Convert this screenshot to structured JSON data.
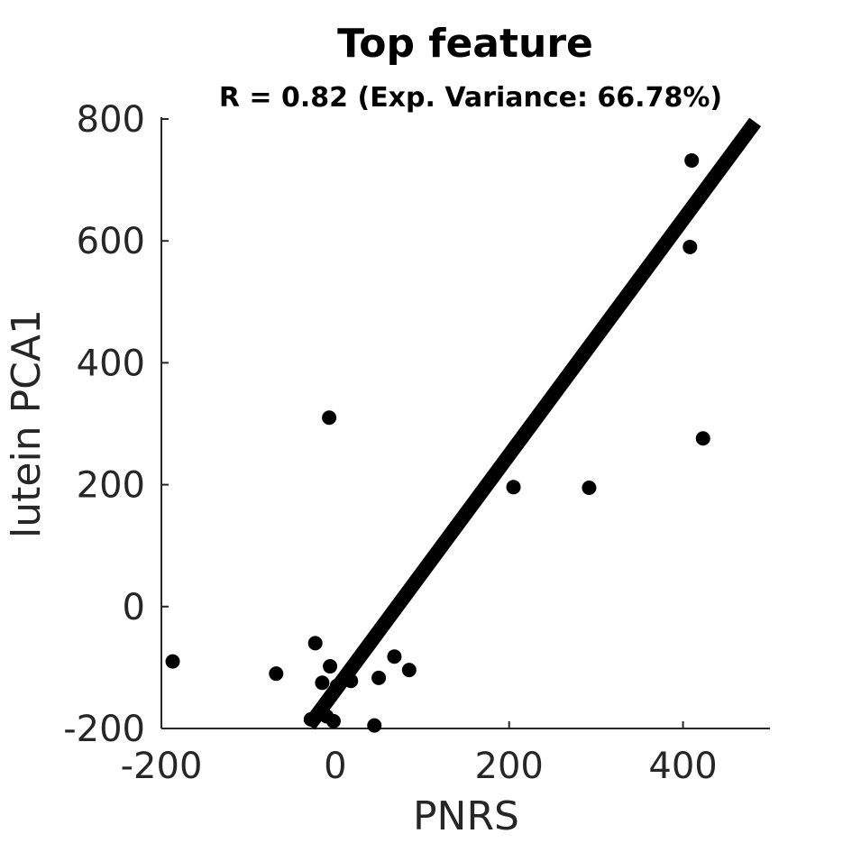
{
  "chart_data": {
    "type": "scatter",
    "title": "Top feature",
    "subtitle": "R = 0.82 (Exp. Variance: 66.78%)",
    "xlabel": "PNRS",
    "ylabel": "lutein PCA1",
    "xlim": [
      -200,
      500
    ],
    "ylim": [
      -200,
      800
    ],
    "x_ticks": [
      -200,
      0,
      200,
      400
    ],
    "x_tick_labels": [
      "-200",
      "0",
      "200",
      "400"
    ],
    "y_ticks": [
      -200,
      0,
      200,
      400,
      600,
      800
    ],
    "y_tick_labels": [
      "-200",
      "0",
      "200",
      "400",
      "600",
      "800"
    ],
    "grid": false,
    "colors": {
      "points": "#000000",
      "fit_line": "#000000",
      "axes": "#262626"
    },
    "points": [
      {
        "x": -187,
        "y": -90
      },
      {
        "x": -68,
        "y": -110
      },
      {
        "x": -23,
        "y": -60
      },
      {
        "x": -28,
        "y": -185
      },
      {
        "x": -15,
        "y": -125
      },
      {
        "x": -10,
        "y": -180
      },
      {
        "x": -6,
        "y": -98
      },
      {
        "x": -7,
        "y": 310
      },
      {
        "x": -2,
        "y": -188
      },
      {
        "x": 2,
        "y": -130
      },
      {
        "x": 18,
        "y": -122
      },
      {
        "x": 45,
        "y": -195
      },
      {
        "x": 50,
        "y": -117
      },
      {
        "x": 68,
        "y": -82
      },
      {
        "x": 85,
        "y": -104
      },
      {
        "x": 205,
        "y": 196
      },
      {
        "x": 292,
        "y": 195
      },
      {
        "x": 408,
        "y": 590
      },
      {
        "x": 410,
        "y": 732
      },
      {
        "x": 423,
        "y": 276
      }
    ],
    "fit_line": {
      "x": [
        -30,
        483
      ],
      "y": [
        -195,
        795
      ]
    }
  }
}
